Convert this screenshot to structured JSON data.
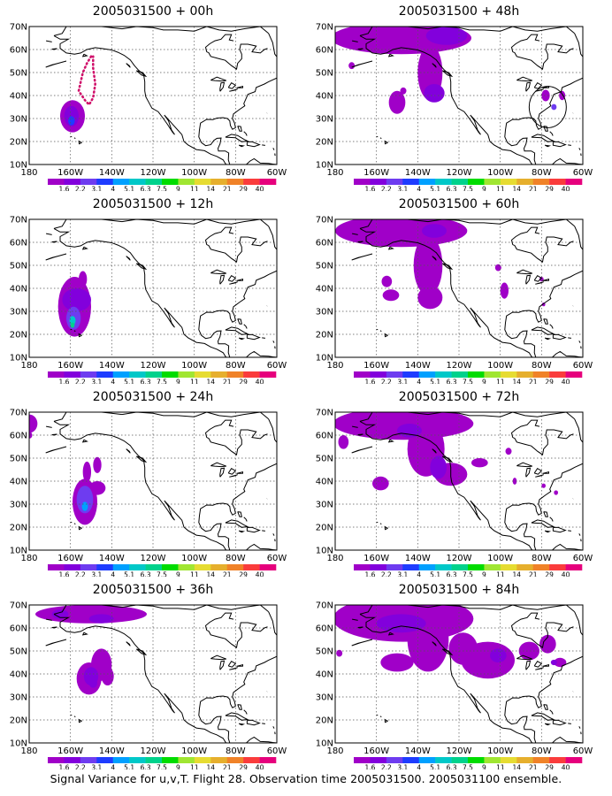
{
  "caption": "Signal Variance for u,v,T. Flight 28. Observation time 2005031500. 2005031100 ensemble.",
  "lat_labels": [
    "70N",
    "60N",
    "50N",
    "40N",
    "30N",
    "20N",
    "10N"
  ],
  "lon_labels": [
    "180",
    "160W",
    "140W",
    "120W",
    "100W",
    "80W",
    "60W"
  ],
  "colorbar": {
    "labels": [
      "1.6",
      "2.2",
      "3.1",
      "4",
      "5.1",
      "6.3",
      "7.5",
      "9",
      "11",
      "14",
      "21",
      "29",
      "40"
    ],
    "colors": [
      "#a000c8",
      "#8200dc",
      "#6e3cf0",
      "#1e3cff",
      "#00a0ff",
      "#00c8c8",
      "#00d28c",
      "#00dc00",
      "#a0e632",
      "#e6dc32",
      "#e6af2d",
      "#f08228",
      "#fa3c3c",
      "#e6007d"
    ]
  },
  "panels": [
    {
      "title": "2005031500 + 00h"
    },
    {
      "title": "2005031500 + 48h"
    },
    {
      "title": "2005031500 + 12h"
    },
    {
      "title": "2005031500 + 60h"
    },
    {
      "title": "2005031500 + 24h"
    },
    {
      "title": "2005031500 + 72h"
    },
    {
      "title": "2005031500 + 36h"
    },
    {
      "title": "2005031500 + 84h"
    }
  ]
}
